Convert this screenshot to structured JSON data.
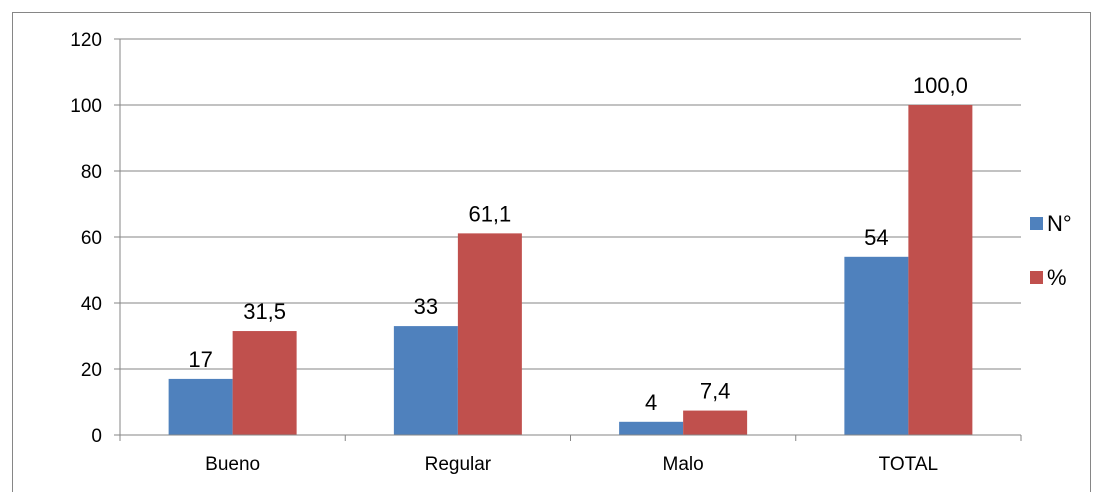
{
  "chart_data": {
    "type": "bar",
    "categories": [
      "Bueno",
      "Regular",
      "Malo",
      "TOTAL"
    ],
    "series": [
      {
        "name": "N°",
        "values": [
          17,
          33,
          4,
          54
        ],
        "labels": [
          "17",
          "33",
          "4",
          "54"
        ],
        "color": "#4F81BD"
      },
      {
        "name": "%",
        "values": [
          31.5,
          61.1,
          7.4,
          100.0
        ],
        "labels": [
          "31,5",
          "61,1",
          "7,4",
          "100,0"
        ],
        "color": "#C0504D"
      }
    ],
    "y_ticks": [
      0,
      20,
      40,
      60,
      80,
      100,
      120
    ],
    "ylim": [
      0,
      120
    ],
    "grid": true,
    "legend_position": "right",
    "title": "",
    "xlabel": "",
    "ylabel": ""
  }
}
